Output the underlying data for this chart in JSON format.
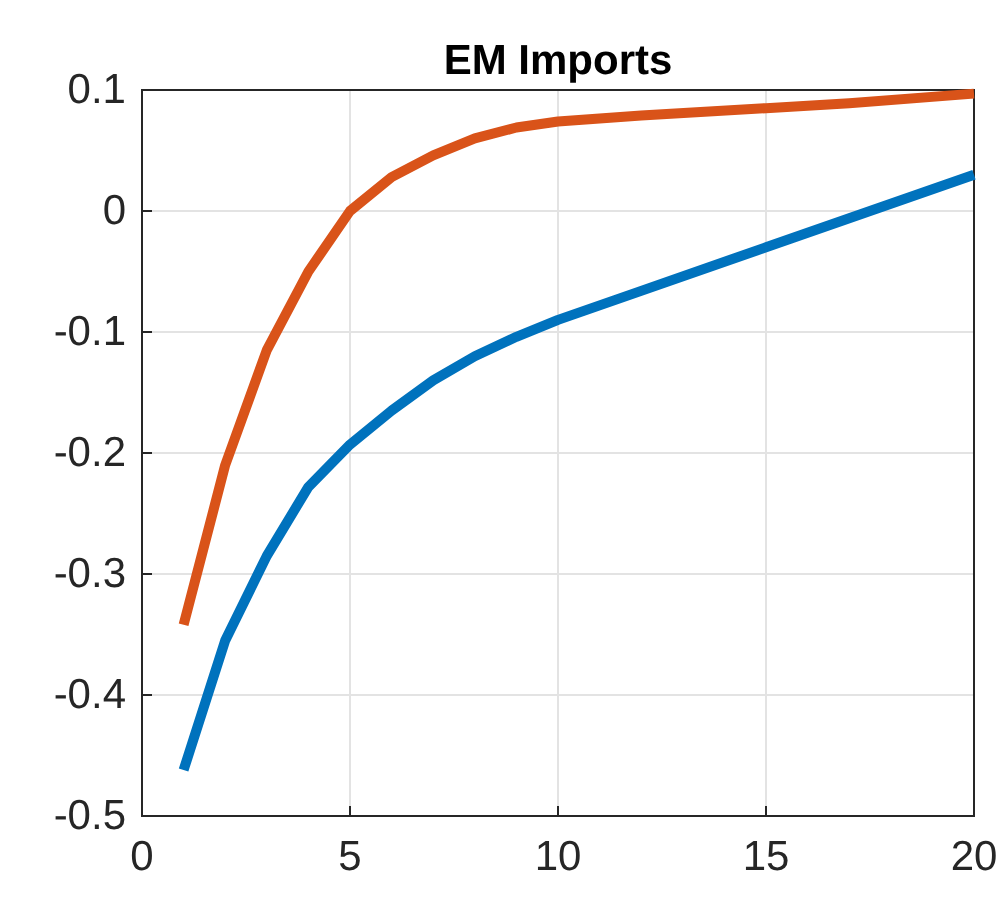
{
  "chart_data": {
    "type": "line",
    "title": "EM Imports",
    "x": [
      1,
      2,
      3,
      4,
      5,
      6,
      7,
      8,
      9,
      10,
      12,
      15,
      17,
      20
    ],
    "series": [
      {
        "color": "#d95319",
        "values": [
          -0.342,
          -0.21,
          -0.115,
          -0.05,
          0,
          0.028,
          0.046,
          0.06,
          0.069,
          0.074,
          0.079,
          0.085,
          0.089,
          0.097
        ]
      },
      {
        "color": "#0072bd",
        "values": [
          -0.462,
          -0.355,
          -0.285,
          -0.228,
          -0.193,
          -0.165,
          -0.14,
          -0.12,
          -0.104,
          -0.09,
          -0.066,
          -0.03,
          -0.006,
          0.03
        ]
      }
    ],
    "xlim": [
      0,
      20
    ],
    "xticks": [
      0,
      5,
      10,
      15,
      20
    ],
    "ylim": [
      -0.5,
      0.1
    ],
    "yticks": [
      -0.5,
      -0.4,
      -0.3,
      -0.2,
      -0.1,
      0,
      0.1
    ],
    "grid": true,
    "marker": "none",
    "line_style": "solid"
  }
}
